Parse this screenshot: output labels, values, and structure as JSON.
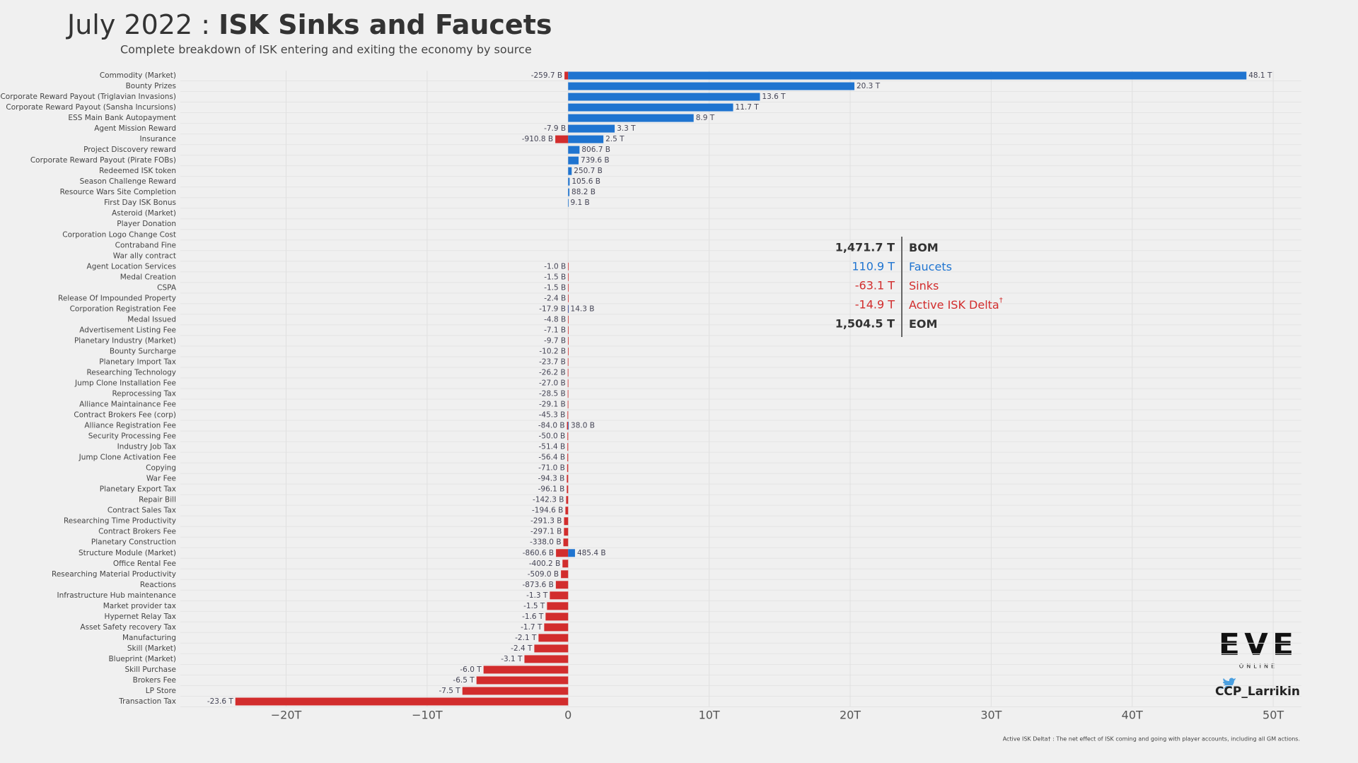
{
  "chart_data": {
    "type": "hbar-diverging",
    "title": [
      "July 2022 : ",
      "ISK Sinks and Faucets"
    ],
    "subtitle": "Complete breakdown of ISK entering and exiting the economy by source",
    "categories": [
      "Commodity (Market)",
      "Bounty Prizes",
      "Corporate Reward Payout (Triglavian Invasions)",
      "Corporate Reward Payout (Sansha Incursions)",
      "ESS Main Bank Autopayment",
      "Agent Mission Reward",
      "Insurance",
      "Project Discovery reward",
      "Corporate Reward Payout (Pirate FOBs)",
      "Redeemed ISK token",
      "Season Challenge Reward",
      "Resource Wars Site Completion",
      "First Day ISK Bonus",
      "Asteroid (Market)",
      "Player Donation",
      "Corporation Logo Change Cost",
      "Contraband Fine",
      "War ally contract",
      "Agent Location Services",
      "Medal Creation",
      "CSPA",
      "Release Of Impounded Property",
      "Corporation Registration Fee",
      "Medal Issued",
      "Advertisement Listing Fee",
      "Planetary Industry (Market)",
      "Bounty Surcharge",
      "Planetary Import Tax",
      "Researching Technology",
      "Jump Clone Installation Fee",
      "Reprocessing Tax",
      "Alliance Maintainance Fee",
      "Contract Brokers Fee (corp)",
      "Alliance Registration Fee",
      "Security Processing Fee",
      "Industry Job Tax",
      "Jump Clone Activation Fee",
      "Copying",
      "War Fee",
      "Planetary Export Tax",
      "Repair Bill",
      "Contract Sales Tax",
      "Researching Time Productivity",
      "Contract Brokers Fee",
      "Planetary Construction",
      "Structure Module (Market)",
      "Office Rental Fee",
      "Researching Material Productivity",
      "Reactions",
      "Infrastructure Hub maintenance",
      "Market provider tax",
      "Hypernet Relay Tax",
      "Asset Safety recovery Tax",
      "Manufacturing",
      "Skill (Market)",
      "Blueprint (Market)",
      "Skill Purchase",
      "Brokers Fee",
      "LP Store",
      "Transaction Tax"
    ],
    "series": [
      {
        "color": "#d22d2d",
        "values": [
          -0.2597,
          null,
          null,
          null,
          null,
          -0.0079,
          -0.9108,
          null,
          null,
          null,
          null,
          null,
          null,
          null,
          null,
          null,
          null,
          null,
          -0.001,
          -0.0015,
          -0.0015,
          -0.0024,
          -0.0179,
          -0.0048,
          -0.0071,
          -0.0097,
          -0.0102,
          -0.0237,
          -0.0262,
          -0.027,
          -0.0285,
          -0.0291,
          -0.0453,
          -0.084,
          -0.05,
          -0.0514,
          -0.0564,
          -0.071,
          -0.0943,
          -0.0961,
          -0.1423,
          -0.1946,
          -0.2913,
          -0.2971,
          -0.338,
          -0.8606,
          -0.4002,
          -0.509,
          -0.8736,
          -1.3,
          -1.5,
          -1.6,
          -1.7,
          -2.1,
          -2.4,
          -3.1,
          -6.0,
          -6.5,
          -7.5,
          -23.6
        ],
        "value_labels": [
          "-259.7 B",
          null,
          null,
          null,
          null,
          "-7.9 B",
          "-910.8 B",
          null,
          null,
          null,
          null,
          null,
          null,
          null,
          null,
          null,
          null,
          null,
          "-1.0 B",
          "-1.5 B",
          "-1.5 B",
          "-2.4 B",
          "-17.9 B",
          "-4.8 B",
          "-7.1 B",
          "-9.7 B",
          "-10.2 B",
          "-23.7 B",
          "-26.2 B",
          "-27.0 B",
          "-28.5 B",
          "-29.1 B",
          "-45.3 B",
          "-84.0 B",
          "-50.0 B",
          "-51.4 B",
          "-56.4 B",
          "-71.0 B",
          "-94.3 B",
          "-96.1 B",
          "-142.3 B",
          "-194.6 B",
          "-291.3 B",
          "-297.1 B",
          "-338.0 B",
          "-860.6 B",
          "-400.2 B",
          "-509.0 B",
          "-873.6 B",
          "-1.3 T",
          "-1.5 T",
          "-1.6 T",
          "-1.7 T",
          "-2.1 T",
          "-2.4 T",
          "-3.1 T",
          "-6.0 T",
          "-6.5 T",
          "-7.5 T",
          "-23.6 T"
        ]
      },
      {
        "color": "#1f74d0",
        "values": [
          48.1,
          20.3,
          13.6,
          11.7,
          8.9,
          3.3,
          2.5,
          0.8067,
          0.7396,
          0.2507,
          0.1056,
          0.0882,
          0.0091,
          null,
          null,
          null,
          null,
          null,
          null,
          null,
          null,
          null,
          0.0143,
          null,
          null,
          null,
          null,
          null,
          null,
          null,
          null,
          null,
          null,
          0.038,
          null,
          null,
          null,
          null,
          null,
          null,
          null,
          null,
          null,
          null,
          null,
          0.4854,
          null,
          null,
          null,
          null,
          null,
          null,
          null,
          null,
          null,
          null,
          null,
          null,
          null,
          null
        ],
        "value_labels": [
          "48.1 T",
          "20.3 T",
          "13.6 T",
          "11.7 T",
          "8.9 T",
          "3.3 T",
          "2.5 T",
          "806.7 B",
          "739.6 B",
          "250.7 B",
          "105.6 B",
          "88.2 B",
          "9.1 B",
          null,
          null,
          null,
          null,
          null,
          null,
          null,
          null,
          null,
          "14.3 B",
          null,
          null,
          null,
          null,
          null,
          null,
          null,
          null,
          null,
          null,
          "38.0 B",
          null,
          null,
          null,
          null,
          null,
          null,
          null,
          null,
          null,
          null,
          null,
          "485.4 B",
          null,
          null,
          null,
          null,
          null,
          null,
          null,
          null,
          null,
          null,
          null,
          null,
          null,
          null
        ]
      }
    ],
    "xlim": [
      -27.5,
      52
    ],
    "xticks": [
      {
        "value": -20,
        "label": "−20T"
      },
      {
        "value": -10,
        "label": "−10T"
      },
      0,
      {
        "value": 10,
        "label": "10T"
      },
      {
        "value": 20,
        "label": "20T"
      },
      {
        "value": 30,
        "label": "30T"
      },
      {
        "value": 40,
        "label": "40T"
      },
      {
        "value": 50,
        "label": "50T"
      }
    ],
    "grid": true,
    "summary": [
      {
        "value_label": "1,471.7 T",
        "label": "BOM",
        "color": "#333333",
        "bold": true
      },
      {
        "value_label": "110.9 T",
        "label": "Faucets",
        "color": "#1f74d0",
        "bold": false
      },
      {
        "value_label": "-63.1 T",
        "label": "Sinks",
        "color": "#d22d2d",
        "bold": false
      },
      {
        "value_label": "-14.9 T",
        "label": "Active ISK Delta",
        "mark": "†",
        "color": "#d22d2d",
        "bold": false
      },
      {
        "value_label": "1,504.5 T",
        "label": "EOM",
        "color": "#333333",
        "bold": true
      }
    ],
    "logo": "EVE",
    "logo_sub": "ONLINE",
    "handle": "CCP_Larrikin",
    "footnote": "Active ISK Delta† : The net effect of ISK coming and going with player accounts, including all GM actions."
  }
}
